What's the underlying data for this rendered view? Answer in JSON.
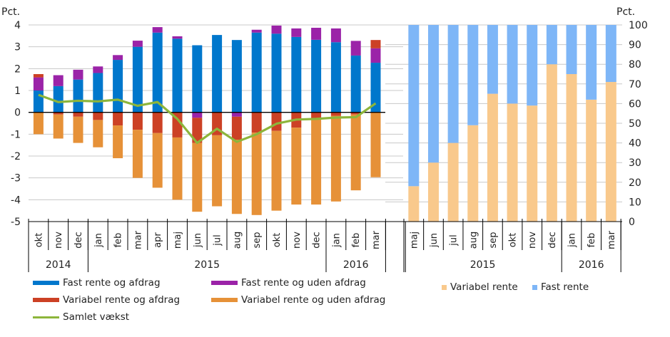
{
  "chart_data": [
    {
      "type": "bar",
      "subtype": "stacked-bar-with-line",
      "unit_label": "Pct.",
      "ylim": [
        -5,
        4
      ],
      "yticks": [
        4,
        3,
        2,
        1,
        0,
        -1,
        -2,
        -3,
        -4,
        -5
      ],
      "grid": true,
      "categories": [
        "okt",
        "nov",
        "dec",
        "jan",
        "feb",
        "mar",
        "apr",
        "maj",
        "jun",
        "jul",
        "aug",
        "sep",
        "okt",
        "nov",
        "dec",
        "jan",
        "feb",
        "mar"
      ],
      "year_groups": [
        {
          "label": "2014",
          "count": 3
        },
        {
          "label": "2015",
          "count": 12
        },
        {
          "label": "2016",
          "count": 3
        }
      ],
      "series": [
        {
          "name": "Fast rente og afdrag",
          "color": "#0077CC",
          "kind": "bar",
          "values": [
            1.0,
            1.2,
            1.5,
            1.8,
            2.4,
            3.0,
            3.65,
            3.37,
            3.07,
            3.54,
            3.31,
            3.65,
            3.6,
            3.45,
            3.32,
            3.21,
            2.6,
            2.27
          ]
        },
        {
          "name": "Fast rente og uden afdrag",
          "color": "#9B23A8",
          "kind": "bar",
          "values": [
            0.6,
            0.5,
            0.45,
            0.3,
            0.22,
            0.28,
            0.25,
            0.11,
            -0.25,
            0.0,
            -0.2,
            0.13,
            0.37,
            0.39,
            0.55,
            0.63,
            0.67,
            0.66
          ]
        },
        {
          "name": "Variabel rente og afdrag",
          "color": "#CC4125",
          "kind": "bar",
          "values": [
            0.15,
            -0.1,
            -0.2,
            -0.35,
            -0.6,
            -0.8,
            -0.95,
            -1.15,
            -1.15,
            -1.05,
            -1.05,
            -0.93,
            -0.85,
            -0.7,
            -0.27,
            -0.16,
            -0.1,
            0.38
          ]
        },
        {
          "name": "Variabel rente og uden afdrag",
          "color": "#E69138",
          "kind": "bar",
          "values": [
            -1.0,
            -1.1,
            -1.2,
            -1.25,
            -1.5,
            -2.2,
            -2.5,
            -2.85,
            -3.15,
            -3.25,
            -3.4,
            -3.77,
            -3.65,
            -3.52,
            -3.95,
            -3.92,
            -3.47,
            -2.97
          ]
        },
        {
          "name": "Samlet vækst",
          "color": "#8DB53B",
          "kind": "line",
          "values": [
            0.8,
            0.47,
            0.53,
            0.5,
            0.58,
            0.3,
            0.47,
            -0.3,
            -1.4,
            -0.75,
            -1.35,
            -1.0,
            -0.52,
            -0.33,
            -0.3,
            -0.24,
            -0.22,
            0.41
          ]
        }
      ],
      "legend": [
        {
          "label": "Fast rente og afdrag",
          "color": "#0077CC",
          "marker": "bar"
        },
        {
          "label": "Fast rente og uden afdrag",
          "color": "#9B23A8",
          "marker": "bar"
        },
        {
          "label": "Variabel rente og afdrag",
          "color": "#CC4125",
          "marker": "bar"
        },
        {
          "label": "Variabel rente og uden afdrag",
          "color": "#E69138",
          "marker": "bar"
        },
        {
          "label": "Samlet vækst",
          "color": "#8DB53B",
          "marker": "line"
        }
      ],
      "legend_position": "bottom"
    },
    {
      "type": "bar",
      "subtype": "stacked-100-percent",
      "unit_label": "Pct.",
      "ylim": [
        0,
        100
      ],
      "yticks": [
        100,
        90,
        80,
        70,
        60,
        50,
        40,
        30,
        20,
        10,
        0
      ],
      "grid": true,
      "y_axis_side": "right",
      "categories": [
        "maj",
        "jun",
        "jul",
        "aug",
        "sep",
        "okt",
        "nov",
        "dec",
        "jan",
        "feb",
        "mar"
      ],
      "year_groups": [
        {
          "label": "2015",
          "count": 8
        },
        {
          "label": "2016",
          "count": 3
        }
      ],
      "series": [
        {
          "name": "Variabel rente",
          "color": "#F9C98C",
          "values": [
            18,
            30,
            40,
            49,
            65,
            60,
            59,
            80,
            75,
            62,
            71
          ]
        },
        {
          "name": "Fast rente",
          "color": "#7EB6F7",
          "values": [
            82,
            70,
            60,
            51,
            35,
            40,
            41,
            20,
            25,
            38,
            29
          ]
        }
      ],
      "legend": [
        {
          "label": "Variabel rente",
          "color": "#F9C98C",
          "marker": "square"
        },
        {
          "label": "Fast rente",
          "color": "#7EB6F7",
          "marker": "square"
        }
      ],
      "legend_position": "bottom"
    }
  ]
}
